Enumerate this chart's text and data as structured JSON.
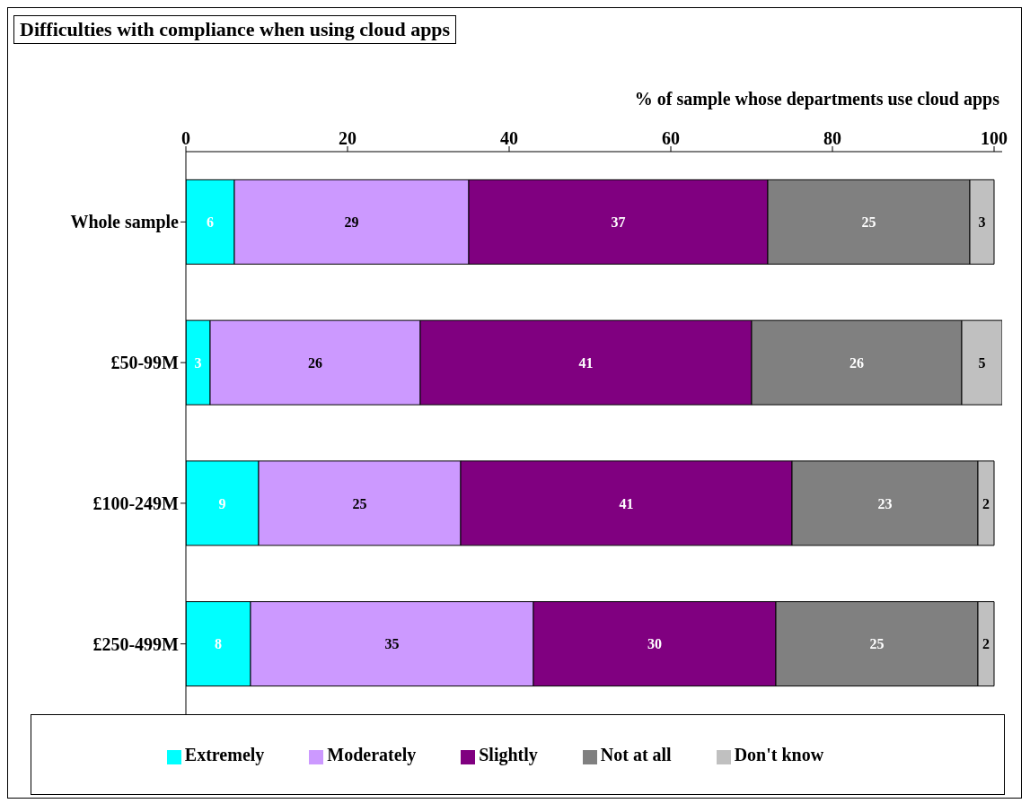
{
  "chart_data": {
    "type": "bar",
    "title": "Difficulties with compliance when using cloud apps",
    "xlabel": "% of sample whose departments use cloud apps",
    "orientation": "horizontal",
    "stacked": true,
    "data_labels": true,
    "grid": false,
    "legend": "bottom",
    "categories": [
      "Whole sample",
      "£50-99M",
      "£100-249M",
      "£250-499M"
    ],
    "xlim": [
      0,
      101
    ],
    "xticks": [
      0,
      20,
      40,
      60,
      80,
      100
    ],
    "series": [
      {
        "name": "Extremely",
        "color": "#00ffff",
        "values": [
          6,
          3,
          9,
          8
        ]
      },
      {
        "name": "Moderately",
        "color": "#cc99ff",
        "values": [
          29,
          26,
          25,
          35
        ]
      },
      {
        "name": "Slightly",
        "color": "#800080",
        "values": [
          37,
          41,
          41,
          30
        ]
      },
      {
        "name": "Not at all",
        "color": "#808080",
        "values": [
          25,
          26,
          23,
          25
        ]
      },
      {
        "name": "Don't know",
        "color": "#c0c0c0",
        "values": [
          3,
          5,
          2,
          2
        ]
      }
    ]
  }
}
